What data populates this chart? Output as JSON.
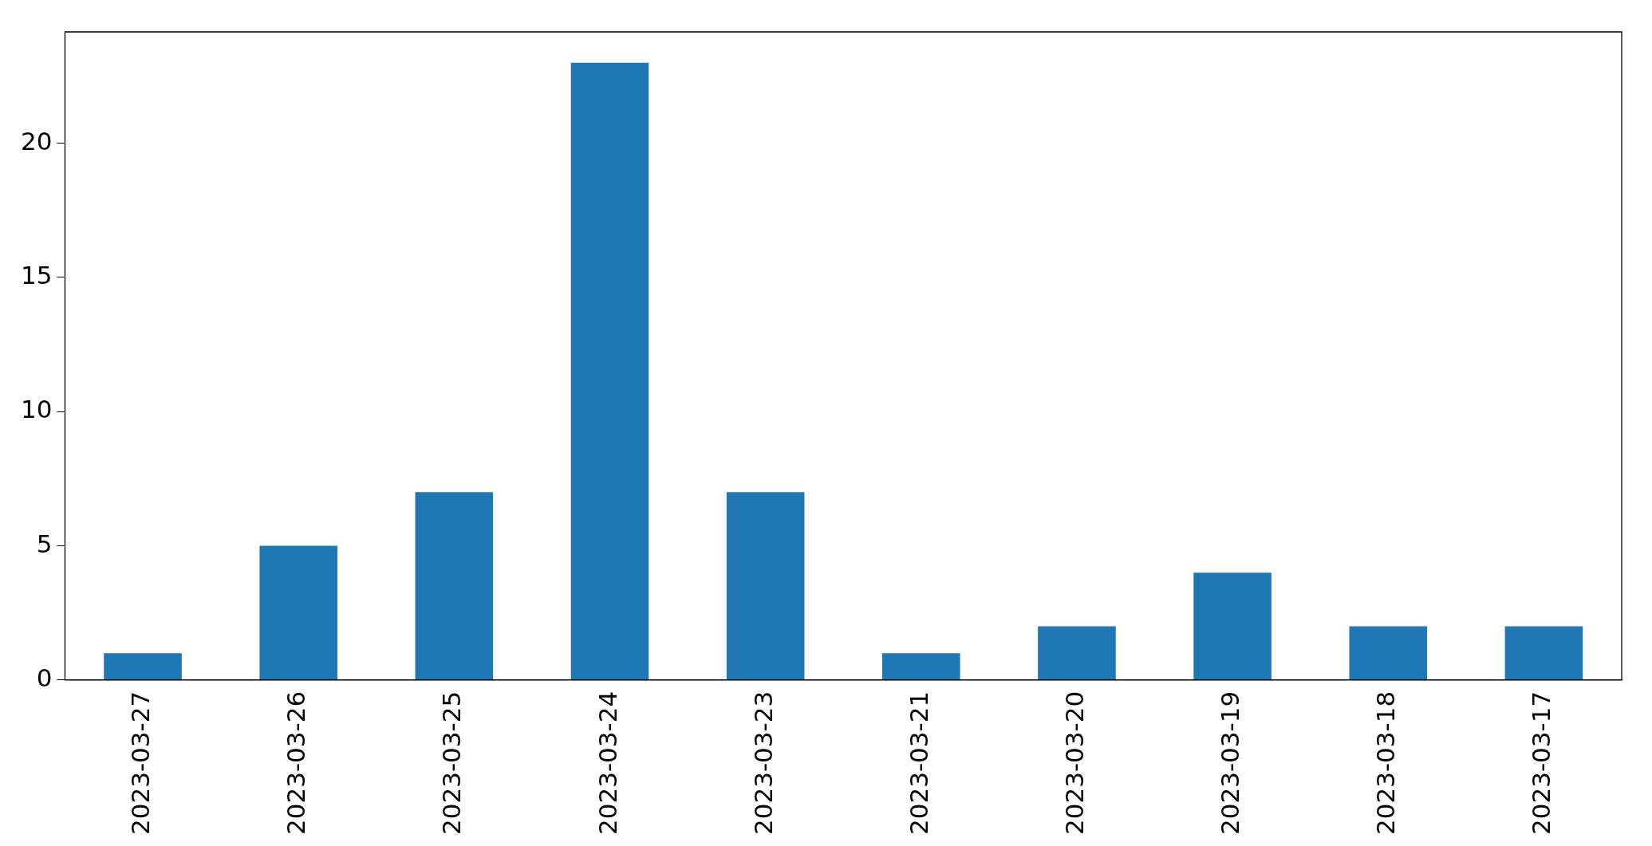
{
  "chart_data": {
    "type": "bar",
    "categories": [
      "2023-03-27",
      "2023-03-26",
      "2023-03-25",
      "2023-03-24",
      "2023-03-23",
      "2023-03-21",
      "2023-03-20",
      "2023-03-19",
      "2023-03-18",
      "2023-03-17"
    ],
    "values": [
      1,
      5,
      7,
      23,
      7,
      1,
      2,
      4,
      2,
      2
    ],
    "color": "#1f77b4",
    "ylim": [
      0,
      24.15
    ],
    "yticks": [
      0,
      5,
      10,
      15,
      20
    ],
    "grid": false,
    "legend": false
  }
}
